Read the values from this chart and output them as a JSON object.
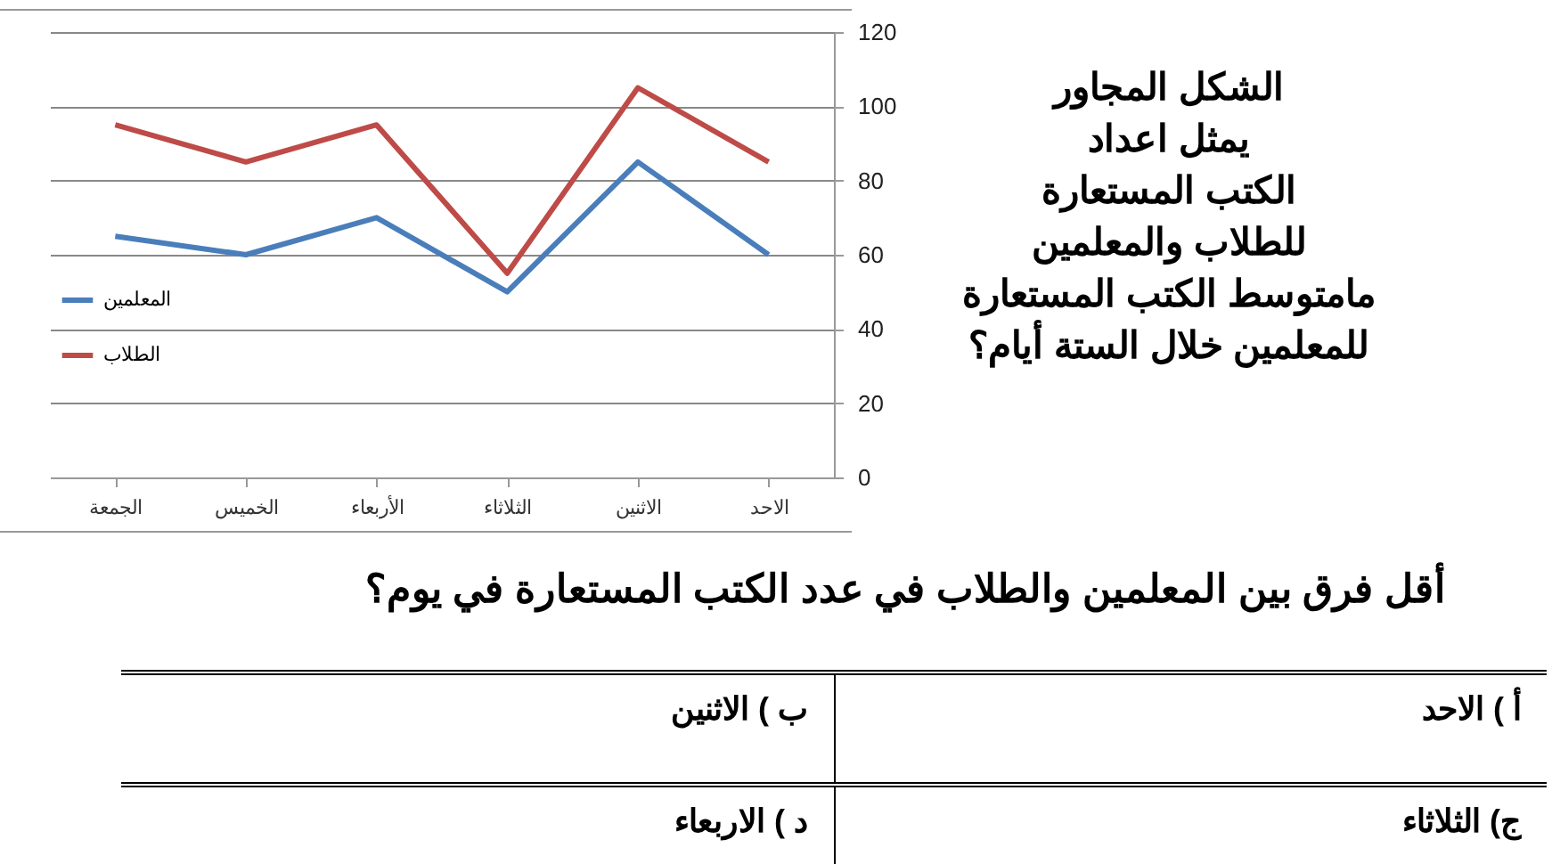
{
  "chart_data": {
    "type": "line",
    "categories": [
      "الجمعة",
      "الخميس",
      "الأربعاء",
      "الثلاثاء",
      "الاثنين",
      "الاحد"
    ],
    "series": [
      {
        "name": "المعلمين",
        "color": "#4a7ebb",
        "values": [
          65,
          60,
          70,
          50,
          85,
          60
        ]
      },
      {
        "name": "الطلاب",
        "color": "#be4b48",
        "values": [
          95,
          85,
          95,
          55,
          105,
          85
        ]
      }
    ],
    "ylim": [
      0,
      120
    ],
    "yticks": [
      0,
      20,
      40,
      60,
      80,
      100,
      120
    ],
    "grid": "y",
    "legend": "left",
    "marker": "none",
    "line_style": "solid",
    "annotations": [
      "الشكل المجاور\nيمثل اعداد\nالكتب المستعارة\nللطلاب والمعلمين\nمامتوسط الكتب المستعارة\nللمعلمين خلال الستة أيام؟",
      "أقل فرق بين المعلمين والطلاب في عدد الكتب المستعارة في  يوم؟",
      "أ ) الاحد",
      "ب ) الاثنين",
      "ج) الثلاثاء",
      "د  ) الاربعاء"
    ]
  }
}
